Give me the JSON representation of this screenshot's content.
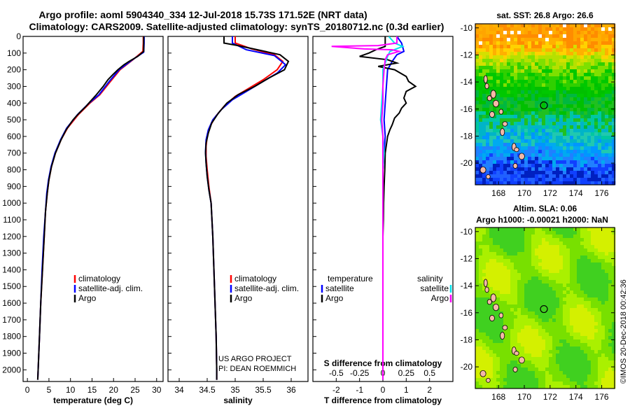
{
  "header": {
    "line1": "Argo profile: aoml 5904340_334 12-Jul-2018 15.73S 171.52E (NRT data)",
    "line2": "Climatology: CARS2009. Satellite-adjusted climatology: synTS_20180712.nc (0.3d earlier)"
  },
  "colors": {
    "climatology": "#ff0000",
    "satellite": "#0000ff",
    "argo": "#000000",
    "sat_salinity": "#00e5ee",
    "argo_salinity": "#ff00ff"
  },
  "depth_axis": {
    "ticks": [
      0,
      100,
      200,
      300,
      400,
      500,
      600,
      700,
      800,
      900,
      1000,
      1100,
      1200,
      1300,
      1400,
      1500,
      1600,
      1700,
      1800,
      1900,
      2000
    ],
    "range": [
      0,
      2070
    ]
  },
  "chart_data": [
    {
      "type": "line",
      "id": "temperature",
      "xlabel": "temperature (deg C)",
      "xlim": [
        -1,
        31.5
      ],
      "ylim": [
        0,
        2070
      ],
      "xticks": [
        0,
        5,
        10,
        15,
        20,
        25,
        30
      ],
      "legend": [
        "climatology",
        "satellite-adj. clim.",
        "Argo"
      ],
      "series": [
        {
          "name": "climatology",
          "color": "#ff0000",
          "points": [
            [
              26.9,
              0
            ],
            [
              26.9,
              40
            ],
            [
              26.8,
              90
            ],
            [
              24.5,
              140
            ],
            [
              21.5,
              200
            ],
            [
              19.3,
              270
            ],
            [
              16.8,
              350
            ],
            [
              14.5,
              400
            ],
            [
              11.8,
              470
            ],
            [
              9.3,
              550
            ],
            [
              7.8,
              620
            ],
            [
              6.5,
              700
            ],
            [
              5.6,
              780
            ],
            [
              5.0,
              860
            ],
            [
              4.6,
              940
            ],
            [
              4.2,
              1050
            ],
            [
              3.9,
              1200
            ],
            [
              3.5,
              1400
            ],
            [
              3.1,
              1600
            ],
            [
              2.8,
              1800
            ],
            [
              2.5,
              2000
            ],
            [
              2.4,
              2060
            ]
          ]
        },
        {
          "name": "satellite-adj. clim.",
          "color": "#0000ff",
          "points": [
            [
              27.1,
              0
            ],
            [
              27.1,
              40
            ],
            [
              27.0,
              95
            ],
            [
              24.4,
              140
            ],
            [
              21.3,
              200
            ],
            [
              19.0,
              270
            ],
            [
              16.6,
              350
            ],
            [
              14.3,
              400
            ],
            [
              11.6,
              470
            ],
            [
              9.1,
              550
            ],
            [
              7.7,
              620
            ],
            [
              6.4,
              700
            ],
            [
              5.5,
              780
            ],
            [
              4.9,
              860
            ],
            [
              4.5,
              940
            ],
            [
              4.2,
              1050
            ],
            [
              3.8,
              1200
            ],
            [
              3.4,
              1400
            ],
            [
              3.1,
              1600
            ],
            [
              2.8,
              1800
            ],
            [
              2.5,
              2000
            ],
            [
              2.4,
              2060
            ]
          ]
        },
        {
          "name": "Argo",
          "color": "#000000",
          "points": [
            [
              27.0,
              0
            ],
            [
              27.0,
              90
            ],
            [
              25.6,
              120
            ],
            [
              23.6,
              150
            ],
            [
              22.4,
              170
            ],
            [
              21.0,
              200
            ],
            [
              19.8,
              230
            ],
            [
              18.7,
              260
            ],
            [
              17.6,
              300
            ],
            [
              16.0,
              350
            ],
            [
              14.6,
              390
            ],
            [
              13.6,
              420
            ],
            [
              12.0,
              460
            ],
            [
              10.6,
              500
            ],
            [
              9.0,
              560
            ],
            [
              7.8,
              620
            ],
            [
              6.5,
              700
            ],
            [
              5.6,
              780
            ],
            [
              5.0,
              860
            ],
            [
              4.6,
              940
            ],
            [
              4.2,
              1050
            ],
            [
              3.9,
              1200
            ],
            [
              3.5,
              1400
            ],
            [
              3.1,
              1600
            ],
            [
              2.8,
              1800
            ],
            [
              2.5,
              2000
            ],
            [
              2.4,
              2060
            ]
          ]
        }
      ]
    },
    {
      "type": "line",
      "id": "salinity",
      "xlabel": "salinity",
      "xlim": [
        33.8,
        36.3
      ],
      "ylim": [
        0,
        2070
      ],
      "xticks": [
        34,
        34.5,
        35,
        35.5,
        36
      ],
      "legend": [
        "climatology",
        "satellite-adj. clim.",
        "Argo"
      ],
      "series": [
        {
          "name": "climatology",
          "color": "#ff0000",
          "points": [
            [
              35.0,
              0
            ],
            [
              35.0,
              40
            ],
            [
              35.3,
              75
            ],
            [
              35.7,
              110
            ],
            [
              35.85,
              150
            ],
            [
              35.75,
              200
            ],
            [
              35.5,
              260
            ],
            [
              35.2,
              320
            ],
            [
              35.0,
              360
            ],
            [
              34.8,
              420
            ],
            [
              34.65,
              480
            ],
            [
              34.55,
              540
            ],
            [
              34.5,
              600
            ],
            [
              34.48,
              660
            ],
            [
              34.48,
              720
            ],
            [
              34.5,
              800
            ],
            [
              34.53,
              900
            ],
            [
              34.57,
              1000
            ],
            [
              34.6,
              1200
            ],
            [
              34.62,
              1400
            ],
            [
              34.64,
              1600
            ],
            [
              34.66,
              1800
            ],
            [
              34.67,
              2000
            ],
            [
              34.67,
              2060
            ]
          ]
        },
        {
          "name": "satellite-adj. clim.",
          "color": "#0000ff",
          "points": [
            [
              34.95,
              0
            ],
            [
              34.95,
              40
            ],
            [
              35.2,
              80
            ],
            [
              35.7,
              115
            ],
            [
              35.9,
              170
            ],
            [
              35.75,
              220
            ],
            [
              35.45,
              280
            ],
            [
              35.15,
              340
            ],
            [
              34.95,
              380
            ],
            [
              34.75,
              440
            ],
            [
              34.6,
              500
            ],
            [
              34.52,
              560
            ],
            [
              34.48,
              620
            ],
            [
              34.47,
              690
            ],
            [
              34.48,
              760
            ],
            [
              34.5,
              840
            ],
            [
              34.53,
              920
            ],
            [
              34.57,
              1000
            ],
            [
              34.6,
              1200
            ],
            [
              34.62,
              1400
            ],
            [
              34.64,
              1600
            ],
            [
              34.66,
              1800
            ],
            [
              34.67,
              2000
            ],
            [
              34.67,
              2060
            ]
          ]
        },
        {
          "name": "Argo",
          "color": "#000000",
          "points": [
            [
              34.8,
              0
            ],
            [
              34.8,
              40
            ],
            [
              35.05,
              55
            ],
            [
              35.4,
              80
            ],
            [
              35.8,
              110
            ],
            [
              35.95,
              150
            ],
            [
              35.88,
              200
            ],
            [
              35.6,
              250
            ],
            [
              35.35,
              300
            ],
            [
              35.05,
              350
            ],
            [
              34.85,
              400
            ],
            [
              34.7,
              460
            ],
            [
              34.58,
              520
            ],
            [
              34.52,
              580
            ],
            [
              34.48,
              640
            ],
            [
              34.47,
              700
            ],
            [
              34.48,
              760
            ],
            [
              34.5,
              840
            ],
            [
              34.53,
              920
            ],
            [
              34.57,
              1000
            ],
            [
              34.6,
              1200
            ],
            [
              34.62,
              1400
            ],
            [
              34.64,
              1600
            ],
            [
              34.66,
              1800
            ],
            [
              34.67,
              2000
            ],
            [
              34.67,
              2060
            ]
          ]
        }
      ]
    },
    {
      "type": "line",
      "id": "difference",
      "xlabel": "T difference from climatology",
      "title2": "S difference from climatology",
      "xlim": [
        -3,
        3
      ],
      "xticks": [
        -2,
        -1,
        0,
        1,
        2
      ],
      "xticks_top": [
        "-0.5",
        "-0.25",
        "0",
        "0.25",
        "0.5"
      ],
      "ylim": [
        0,
        2070
      ],
      "legend_temperature_title": "temperature",
      "legend_salinity_title": "salinity",
      "legend_temperature": [
        "satellite",
        "Argo"
      ],
      "legend_salinity": [
        "satellite",
        "Argo"
      ],
      "series": [
        {
          "name": "satellite",
          "color": "#0000ff",
          "points": [
            [
              0.6,
              0
            ],
            [
              0.8,
              40
            ],
            [
              0.9,
              90
            ],
            [
              0.6,
              110
            ],
            [
              0.4,
              150
            ],
            [
              0.2,
              200
            ],
            [
              0.15,
              300
            ],
            [
              0.1,
              400
            ],
            [
              0.05,
              500
            ],
            [
              0.1,
              600
            ],
            [
              0.05,
              700
            ],
            [
              0,
              800
            ],
            [
              0,
              1000
            ],
            [
              0,
              1200
            ],
            [
              0,
              2060
            ]
          ]
        },
        {
          "name": "Argo",
          "color": "#000000",
          "points": [
            [
              0.1,
              0
            ],
            [
              0.1,
              60
            ],
            [
              -0.3,
              80
            ],
            [
              -0.6,
              100
            ],
            [
              -1.0,
              120
            ],
            [
              0.2,
              140
            ],
            [
              0.6,
              160
            ],
            [
              -0.2,
              180
            ],
            [
              0.5,
              200
            ],
            [
              1.0,
              240
            ],
            [
              1.1,
              270
            ],
            [
              1.4,
              300
            ],
            [
              1.0,
              330
            ],
            [
              0.9,
              370
            ],
            [
              1.0,
              400
            ],
            [
              0.8,
              430
            ],
            [
              0.7,
              460
            ],
            [
              0.5,
              490
            ],
            [
              0.4,
              530
            ],
            [
              0.3,
              560
            ],
            [
              0.2,
              600
            ],
            [
              0.15,
              650
            ],
            [
              0.1,
              700
            ],
            [
              0.08,
              800
            ],
            [
              0.05,
              900
            ],
            [
              0.03,
              1000
            ],
            [
              0.02,
              1100
            ],
            [
              0,
              1200
            ],
            [
              0,
              2060
            ]
          ]
        },
        {
          "name": "satellite",
          "color": "#00e5ee",
          "points": [
            [
              0.25,
              0
            ],
            [
              0.5,
              40
            ],
            [
              0.85,
              60
            ],
            [
              0.3,
              90
            ],
            [
              0.2,
              120
            ],
            [
              0.0,
              200
            ],
            [
              0.0,
              300
            ],
            [
              -0.05,
              400
            ],
            [
              -0.1,
              500
            ],
            [
              0.0,
              600
            ],
            [
              0.05,
              700
            ],
            [
              0.0,
              800
            ],
            [
              0.0,
              1000
            ],
            [
              0,
              2060
            ]
          ]
        },
        {
          "name": "Argo",
          "color": "#ff00ff",
          "points": [
            [
              0.6,
              0
            ],
            [
              0.6,
              40
            ],
            [
              -0.2,
              55
            ],
            [
              -2.2,
              60
            ],
            [
              -0.8,
              75
            ],
            [
              0.4,
              80
            ],
            [
              0.7,
              90
            ],
            [
              0.2,
              110
            ],
            [
              0.1,
              140
            ],
            [
              0.05,
              200
            ],
            [
              0.0,
              300
            ],
            [
              0.0,
              400
            ],
            [
              -0.05,
              500
            ],
            [
              0.0,
              600
            ],
            [
              0.0,
              800
            ],
            [
              0.0,
              1000
            ],
            [
              0,
              2060
            ]
          ]
        }
      ]
    }
  ],
  "maps": [
    {
      "title": "sat. SST: 26.8 Argo: 26.6",
      "type": "heatmap",
      "lon_ticks": [
        "168",
        "170",
        "172",
        "174",
        "176"
      ],
      "lat_ticks": [
        "-10",
        "-12",
        "-14",
        "-16",
        "-18",
        "-20"
      ]
    },
    {
      "title": "Altim. SLA: 0.06",
      "subtitle": "Argo h1000: -0.00021 h2000: NaN",
      "type": "heatmap",
      "lon_ticks": [
        "168",
        "170",
        "172",
        "174",
        "176"
      ],
      "lat_ticks": [
        "-10",
        "-12",
        "-14",
        "-16",
        "-18",
        "-20"
      ]
    }
  ],
  "credits": {
    "project": "US ARGO PROJECT",
    "pi": "PI: DEAN ROEMMICH",
    "imos": "©IMOS 20-Dec-2018 00:42:36"
  }
}
